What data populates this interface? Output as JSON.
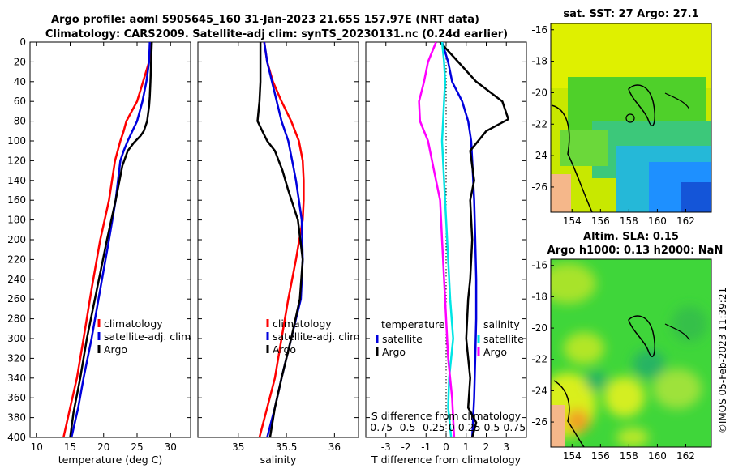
{
  "titles": {
    "line1": "Argo profile: aoml 5905645_160 31-Jan-2023 21.65S 157.97E (NRT data)",
    "line2": "Climatology: CARS2009. Satellite-adj clim: synTS_20230131.nc (0.24d earlier)",
    "sst_title": "sat. SST: 27 Argo: 27.1",
    "sla_title1": "Altim. SLA: 0.15",
    "sla_title2": "Argo h1000: 0.13 h2000: NaN",
    "stamp": "©IMOS 05-Feb-2023 11:39:21"
  },
  "colors": {
    "climatology": "#ff0000",
    "satellite": "#0000dd",
    "argo": "#000000",
    "salinity_sat": "#00e5e5",
    "salinity_clim": "#ff00ff"
  },
  "chart_data": [
    {
      "id": "temperature",
      "type": "line",
      "xlabel": "temperature (deg C)",
      "ylabel": "",
      "xlim": [
        9,
        33
      ],
      "ylim": [
        0,
        400
      ],
      "xticks": [
        10,
        15,
        20,
        25,
        30
      ],
      "yticks": [
        0,
        20,
        40,
        60,
        80,
        100,
        120,
        140,
        160,
        180,
        200,
        220,
        240,
        260,
        280,
        300,
        320,
        340,
        360,
        380,
        400
      ],
      "legend": [
        "climatology",
        "satellite-adj. clim",
        "Argo"
      ],
      "series": [
        {
          "name": "climatology",
          "color": "#ff0000",
          "x": [
            27.0,
            26.8,
            25.9,
            25.0,
            24.2,
            23.4,
            23.0,
            22.5,
            21.7,
            20.8,
            19.5,
            18.2,
            17.0,
            16.0,
            15.0,
            14.0
          ],
          "y": [
            0,
            20,
            40,
            60,
            70,
            80,
            90,
            100,
            120,
            160,
            200,
            250,
            300,
            340,
            370,
            400
          ]
        },
        {
          "name": "satellite-adj. clim",
          "color": "#0000dd",
          "x": [
            26.9,
            26.8,
            26.4,
            25.8,
            25.0,
            24.3,
            23.6,
            23.0,
            22.5,
            21.8,
            20.8,
            19.5,
            18.2,
            17.0,
            16.2,
            15.2
          ],
          "y": [
            0,
            20,
            40,
            60,
            80,
            90,
            100,
            110,
            120,
            160,
            200,
            250,
            300,
            340,
            370,
            400
          ]
        },
        {
          "name": "Argo",
          "color": "#000000",
          "x": [
            27.2,
            27.1,
            27.0,
            26.9,
            26.8,
            26.5,
            26.0,
            25.5,
            24.5,
            23.6,
            22.8,
            21.8,
            20.5,
            19.0,
            17.5,
            16.5,
            15.5,
            15.0
          ],
          "y": [
            0,
            20,
            40,
            55,
            65,
            80,
            90,
            95,
            102,
            110,
            125,
            160,
            200,
            250,
            300,
            340,
            375,
            400
          ]
        }
      ]
    },
    {
      "id": "salinity",
      "type": "line",
      "xlabel": "salinity",
      "ylabel": "",
      "xlim": [
        34.58,
        36.25
      ],
      "ylim": [
        0,
        400
      ],
      "xticks": [
        35,
        35.5,
        36
      ],
      "legend": [
        "climatology",
        "satellite-adj. clim",
        "Argo"
      ],
      "series": [
        {
          "name": "climatology",
          "color": "#ff0000",
          "x": [
            35.27,
            35.3,
            35.36,
            35.45,
            35.55,
            35.63,
            35.67,
            35.68,
            35.68,
            35.67,
            35.6,
            35.52,
            35.45,
            35.38,
            35.3,
            35.22
          ],
          "y": [
            0,
            20,
            40,
            60,
            80,
            100,
            120,
            140,
            160,
            180,
            220,
            260,
            300,
            340,
            370,
            400
          ]
        },
        {
          "name": "satellite-adj. clim",
          "color": "#0000dd",
          "x": [
            35.27,
            35.3,
            35.35,
            35.4,
            35.45,
            35.52,
            35.56,
            35.6,
            35.63,
            35.66,
            35.67,
            35.65,
            35.55,
            35.45,
            35.38,
            35.3
          ],
          "y": [
            0,
            20,
            40,
            60,
            80,
            100,
            120,
            140,
            160,
            180,
            220,
            260,
            300,
            340,
            370,
            400
          ]
        },
        {
          "name": "Argo",
          "color": "#000000",
          "x": [
            35.23,
            35.23,
            35.23,
            35.22,
            35.2,
            35.25,
            35.3,
            35.38,
            35.46,
            35.52,
            35.62,
            35.67,
            35.64,
            35.55,
            35.45,
            35.38,
            35.33
          ],
          "y": [
            0,
            20,
            40,
            60,
            80,
            90,
            100,
            110,
            130,
            150,
            180,
            220,
            260,
            300,
            340,
            370,
            400
          ]
        }
      ]
    },
    {
      "id": "difference",
      "type": "line",
      "xlabel": "T difference from climatology",
      "ylabel": "",
      "xlim": [
        -4,
        4
      ],
      "ylim": [
        0,
        400
      ],
      "xticks": [
        -3,
        -2,
        -1,
        0,
        1,
        2,
        3
      ],
      "top_label": "S difference from climatology",
      "top_ticks": [
        "-0.75",
        "-0.5",
        "-0.25",
        "0",
        "0.25",
        "0.5",
        "0.75"
      ],
      "legend_temperature": {
        "title": "temperature",
        "items": [
          "satellite",
          "Argo"
        ]
      },
      "legend_salinity": {
        "title": "salinity",
        "items": [
          "satellite",
          "Argo"
        ]
      },
      "series": [
        {
          "name": "temperature satellite",
          "color": "#0000dd",
          "x": [
            -0.2,
            0.1,
            0.3,
            0.8,
            1.1,
            1.25,
            1.3,
            1.4,
            1.45,
            1.5,
            1.5,
            1.45,
            1.4,
            1.35,
            1.3
          ],
          "y": [
            0,
            20,
            40,
            60,
            80,
            100,
            120,
            160,
            200,
            240,
            280,
            320,
            360,
            380,
            400
          ]
        },
        {
          "name": "temperature Argo",
          "color": "#000000",
          "x": [
            -0.3,
            0.6,
            1.5,
            2.8,
            3.1,
            2.0,
            1.2,
            1.4,
            1.2,
            1.3,
            1.2,
            1.1,
            1.0,
            1.2,
            1.1,
            1.5,
            1.3
          ],
          "y": [
            0,
            20,
            40,
            60,
            78,
            90,
            110,
            140,
            160,
            200,
            240,
            260,
            300,
            340,
            370,
            385,
            400
          ]
        },
        {
          "name": "salinity satellite",
          "color": "#00e5e5",
          "x": [
            -0.2,
            -0.1,
            -0.05,
            -0.1,
            -0.15,
            -0.2,
            -0.1,
            0.0,
            0.1,
            0.2,
            0.35,
            0.15,
            0.1,
            0.25
          ],
          "y": [
            0,
            20,
            40,
            60,
            80,
            100,
            140,
            180,
            220,
            260,
            300,
            340,
            370,
            400
          ]
        },
        {
          "name": "salinity Argo",
          "color": "#ff00ff",
          "x": [
            -0.5,
            -0.9,
            -1.1,
            -1.35,
            -1.3,
            -0.9,
            -0.6,
            -0.3,
            -0.2,
            -0.1,
            0.0,
            0.1,
            0.3,
            0.4
          ],
          "y": [
            0,
            20,
            40,
            60,
            80,
            100,
            130,
            160,
            200,
            240,
            280,
            320,
            360,
            400
          ]
        }
      ]
    },
    {
      "id": "sst_map",
      "type": "heatmap",
      "title": "sat. SST: 27 Argo: 27.1",
      "xlim": [
        152.5,
        163.8
      ],
      "ylim": [
        -27.6,
        -15.6
      ],
      "xticks": [
        154,
        156,
        158,
        160,
        162
      ],
      "yticks": [
        -16,
        -18,
        -20,
        -22,
        -24,
        -26
      ]
    },
    {
      "id": "sla_map",
      "type": "heatmap",
      "title": "Altim. SLA: 0.15 / Argo h1000: 0.13 h2000: NaN",
      "xlim": [
        152.5,
        163.8
      ],
      "ylim": [
        -27.6,
        -15.6
      ],
      "xticks": [
        154,
        156,
        158,
        160,
        162
      ],
      "yticks": [
        -16,
        -18,
        -20,
        -22,
        -24,
        -26
      ]
    }
  ]
}
